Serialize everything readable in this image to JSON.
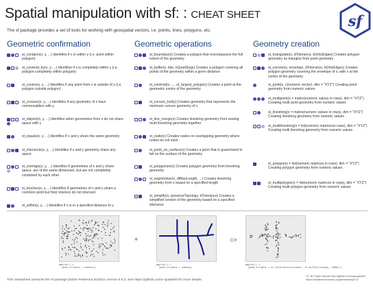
{
  "header": {
    "title_main": "Spatial manipulation with sf: : ",
    "title_suffix": "CHEAT SHEET",
    "subtitle": "The sf package provides a set of tools for working with geospatial vectors, i.e. points, lines, polygons, etc.",
    "logo_text": "sf"
  },
  "columns": [
    {
      "heading": "Geometric confirmation",
      "entries": [
        {
          "text": "st_contains(x, y, ...) Identifies if x is within y (i.e. point within polygon)"
        },
        {
          "text": "st_covered_by(x, y, ...) Identifies if x is completely within y (i.e. polygon completely within polygon)"
        },
        {
          "text": "st_covers(x, y, ...) Identifies if any point from x is outside of y (i.e. polygon outside polygon)"
        },
        {
          "text": "st_crosses(x, y, ...) Identifies if any geometry of x have commonalities with y"
        },
        {
          "text": "st_disjoint(x, y, ...) Identifies when geometries from x do not share space with y"
        },
        {
          "text": "st_equals(x, y, ...) Identifies if x and y share the same geometry"
        },
        {
          "text": "st_intersects(x, y, ...) Identifies if x and y geometry share any space"
        },
        {
          "text": "st_overlaps(x, y, ...) Identifies if geometries of x and y share space, are of the same dimension, but are not completely contained by each other"
        },
        {
          "text": "st_touches(x, y, ...) Identifies if geometries of x and y share a common point but their interiors do not intersect"
        },
        {
          "text": "st_within(x, y, ...) Identifies if x is in a specified distance to y"
        }
      ]
    },
    {
      "heading": "Geometric operations",
      "entries": [
        {
          "text": "st_boundary(x) Creates a polygon that encompasses the full extent of the geometry"
        },
        {
          "text": "st_buffer(x, dist, nQuadSegs) Creates a polygon covering all points of the geometry within a given distance"
        },
        {
          "text": "st_centroid(x, ..., of_largest_polygon) Creates a point at the geometric centre of the geometry"
        },
        {
          "text": "st_convex_hull(x) Creates geometry that represents the minimum convex geometry of x"
        },
        {
          "text": "st_line_merge(x) Creates linestring geometry from sewing multi linestring geometry together"
        },
        {
          "text": "st_node(x) Creates nodes on overlapping geometry where nodes do not exist"
        },
        {
          "text": "st_point_on_surface(x) Creates a point that is guarenteed to fall on the surface of the geometry"
        },
        {
          "text": "st_polygonize(x) Creates polygon geometry from linestring geometry"
        },
        {
          "text": "st_segmentize(x, dfMaxLength, ...) Creates linestring geometry from x based on a specified length"
        },
        {
          "text": "st_simplify(x, preserveTopology, dTolerance) Creates a simplified version of the geometry based on a specified tolerance"
        }
      ]
    },
    {
      "heading": "Geometry creation",
      "entries": [
        {
          "text": "st_triangulate(x, dTolerance, bOnlyEdges) Creates polygon geometry as triangles from point geometry"
        },
        {
          "text": "st_voronoi(x, envelope, dTolerance, bOnlyEdges) Creates polygon geometry covering the envelope of x, with x at the centre of the geometry"
        },
        {
          "text": "st_point(x, c(numeric vector), dim = \"XYZ\") Creating point geometry from numeric values"
        },
        {
          "text": "st_multipoint(x = matrix(numeric values in rows), dim = \"XYZ\") Creating multi point geometry from numeric values"
        },
        {
          "text": "st_linestring(x = matrix(numeric values in rows), dim = \"XYZ\") Creating linestring geometry from numeric values"
        },
        {
          "text": "st_multilinestring(x = list(numeric matricesin rows), dim = \"XYZ\") Creating multi linestring geometry from numeric values"
        },
        {
          "text": "st_polygon(x = list(numeric matrices in rows), dim = \"XYZ\") Creating polygon geometry from numeric values"
        },
        {
          "text": "st_multipolygon(x = list(numeric matrices in rows), dim = \"XYZ\") Creating multi polygon geometry from numeric values"
        }
      ]
    }
  ],
  "example": {
    "plot1_code": "ggplot() +\n  geom_sf(data = schools)",
    "operator_plus": "+",
    "plot2_code": "ggplot() +\n  geom_sf(data = subway)",
    "operator_arrow": "=>",
    "plot3_code": "ggplot() +\n  geom_sf(data = st_intersects(schools, st_buffer(subway, 1000)))"
  },
  "footer": {
    "left": "This cheatsheet presents the sf package [Edzer Pebesma 2018] in version 0.6.3.   See https://github.com/r-spatial/sf for more details.",
    "right_1": "CC BY Ryan Garnett  http://github.com/ryangarnett",
    "right_2": "https://creativecommons.org/licenses/by/4.0/"
  },
  "colors": {
    "heading": "#1a3f82",
    "icon_purple": "#4b3a9a",
    "logo_border": "#2a3f8f",
    "logo_text": "#2a3f8f"
  }
}
